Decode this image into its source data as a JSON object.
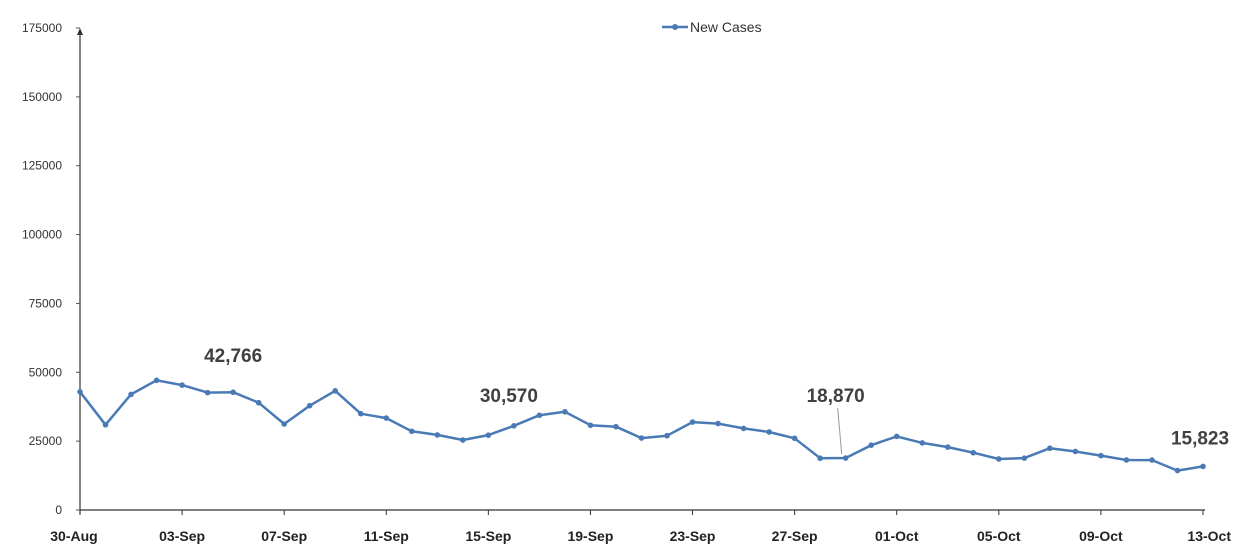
{
  "chart_data": {
    "type": "line",
    "title": "",
    "xlabel": "",
    "ylabel": "",
    "ylim": [
      0,
      175000
    ],
    "yticks": [
      "0",
      "25000",
      "50000",
      "75000",
      "100000",
      "125000",
      "150000",
      "175000"
    ],
    "xtick_labels": [
      "30-Aug",
      "03-Sep",
      "07-Sep",
      "11-Sep",
      "15-Sep",
      "19-Sep",
      "23-Sep",
      "27-Sep",
      "01-Oct",
      "05-Oct",
      "09-Oct",
      "13-Oct"
    ],
    "x": [
      "30-Aug",
      "31-Aug",
      "01-Sep",
      "02-Sep",
      "03-Sep",
      "04-Sep",
      "05-Sep",
      "06-Sep",
      "07-Sep",
      "08-Sep",
      "09-Sep",
      "10-Sep",
      "11-Sep",
      "12-Sep",
      "13-Sep",
      "14-Sep",
      "15-Sep",
      "16-Sep",
      "17-Sep",
      "18-Sep",
      "19-Sep",
      "20-Sep",
      "21-Sep",
      "22-Sep",
      "23-Sep",
      "24-Sep",
      "25-Sep",
      "26-Sep",
      "27-Sep",
      "28-Sep",
      "29-Sep",
      "30-Sep",
      "01-Oct",
      "02-Oct",
      "03-Oct",
      "04-Oct",
      "05-Oct",
      "06-Oct",
      "07-Oct",
      "08-Oct",
      "09-Oct",
      "10-Oct",
      "11-Oct",
      "12-Oct",
      "13-Oct"
    ],
    "series": [
      {
        "name": "New Cases",
        "color": "#4a7ab5",
        "values": [
          42909,
          30941,
          41965,
          47092,
          45352,
          42618,
          42766,
          38948,
          31222,
          37875,
          43263,
          34973,
          33376,
          28591,
          27254,
          25404,
          27176,
          30570,
          34403,
          35662,
          30773,
          30256,
          26115,
          26964,
          31923,
          31382,
          29616,
          28326,
          26041,
          18795,
          18870,
          23529,
          26727,
          24354,
          22842,
          20799,
          18531,
          18833,
          22431,
          21257,
          19740,
          18166,
          18132,
          14313,
          15823
        ]
      }
    ],
    "annotations": [
      {
        "text": "42,766",
        "x": "05-Sep"
      },
      {
        "text": "30,570",
        "x": "16-Sep"
      },
      {
        "text": "18,870",
        "x": "29-Sep"
      },
      {
        "text": "15,823",
        "x": "13-Oct"
      }
    ],
    "legend": {
      "position": "top-center",
      "label": "New Cases"
    },
    "grid": false
  }
}
